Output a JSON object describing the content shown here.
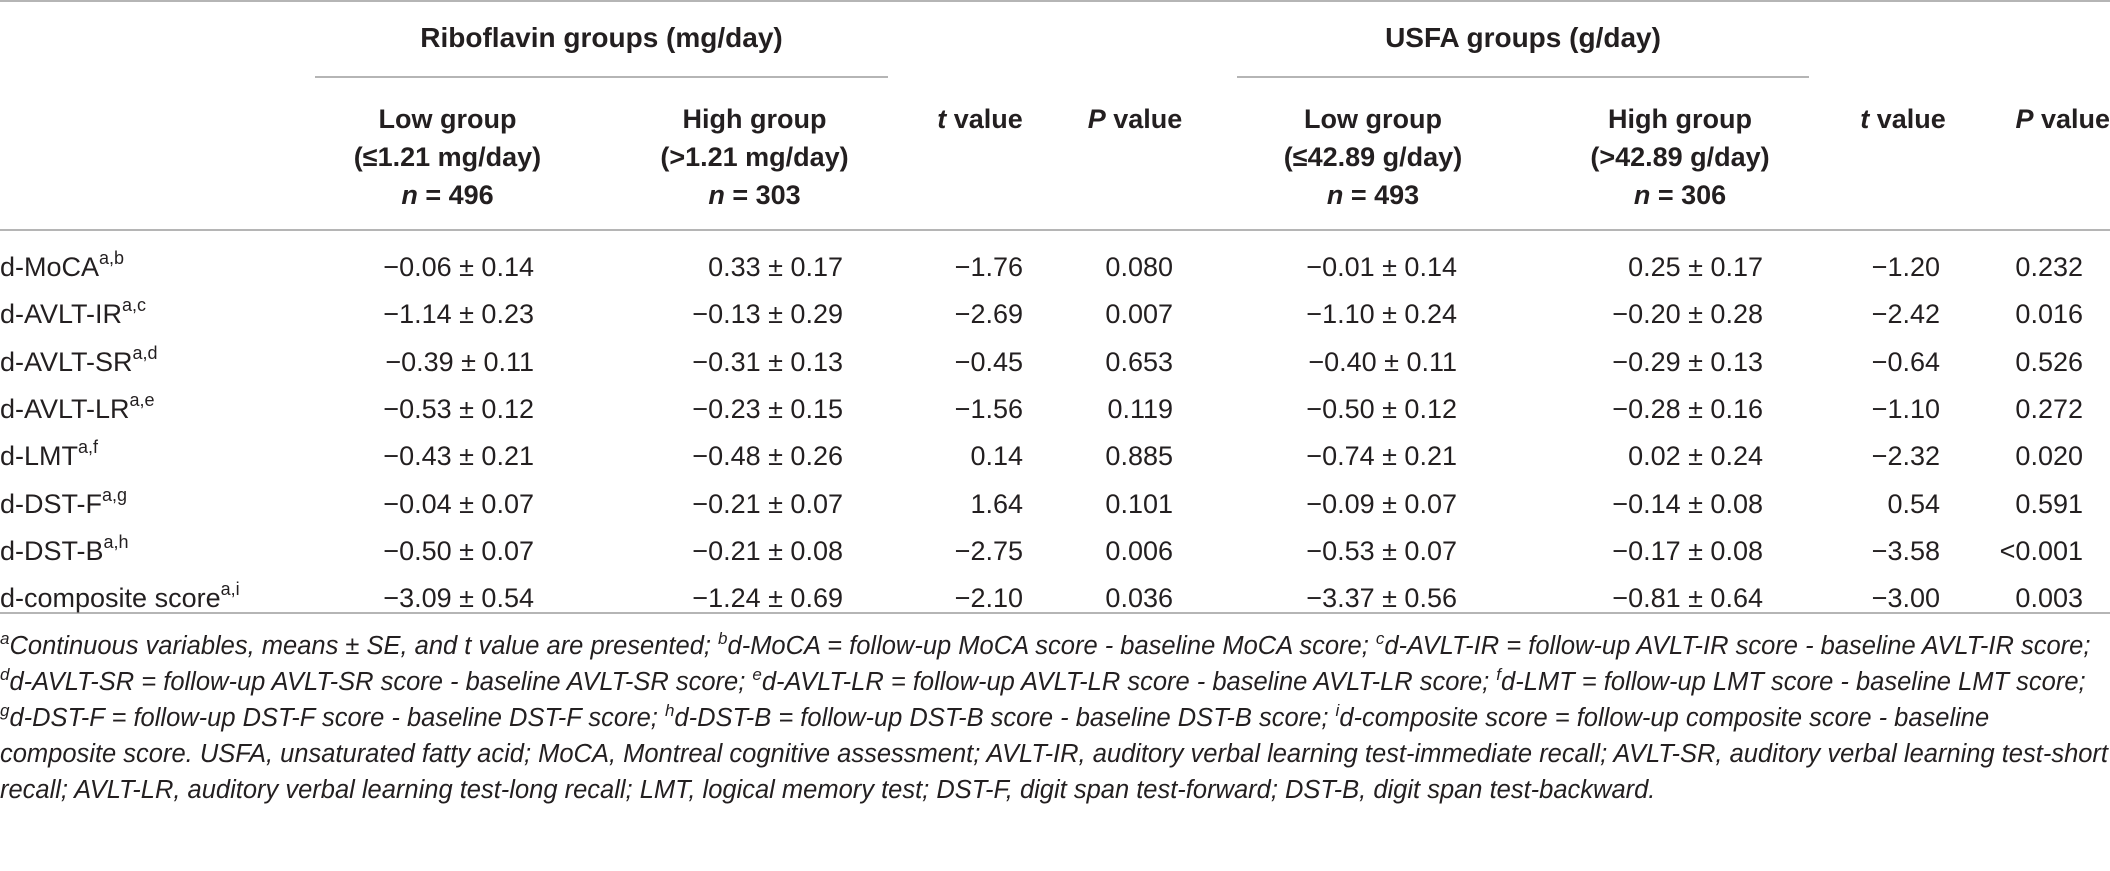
{
  "header": {
    "riboflavin_group": "Riboflavin groups (mg/day)",
    "usfa_group": "USFA groups (g/day)",
    "rib_low": [
      "Low group",
      "(≤1.21 mg/day)",
      "n = 496"
    ],
    "rib_high": [
      "High group",
      "(>1.21 mg/day)",
      "n = 303"
    ],
    "usfa_low": [
      "Low group",
      "(≤42.89 g/day)",
      "n = 493"
    ],
    "usfa_high": [
      "High group",
      "(>42.89 g/day)",
      "n = 306"
    ],
    "t_value_italic": "t",
    "t_value_rest": " value",
    "p_value_italic": "P",
    "p_value_rest": " value"
  },
  "rows": [
    {
      "label": "d-MoCA",
      "sup": "a,b",
      "rib_low": "−0.06 ± 0.14",
      "rib_high": "0.33 ± 0.17",
      "rib_t": "−1.76",
      "rib_p": "0.080",
      "usfa_low": "−0.01 ± 0.14",
      "usfa_high": "0.25 ± 0.17",
      "usfa_t": "−1.20",
      "usfa_p": "0.232"
    },
    {
      "label": "d-AVLT-IR",
      "sup": "a,c",
      "rib_low": "−1.14 ± 0.23",
      "rib_high": "−0.13 ± 0.29",
      "rib_t": "−2.69",
      "rib_p": "0.007",
      "usfa_low": "−1.10 ± 0.24",
      "usfa_high": "−0.20 ± 0.28",
      "usfa_t": "−2.42",
      "usfa_p": "0.016"
    },
    {
      "label": "d-AVLT-SR",
      "sup": "a,d",
      "rib_low": "−0.39 ± 0.11",
      "rib_high": "−0.31 ± 0.13",
      "rib_t": "−0.45",
      "rib_p": "0.653",
      "usfa_low": "−0.40 ± 0.11",
      "usfa_high": "−0.29 ± 0.13",
      "usfa_t": "−0.64",
      "usfa_p": "0.526"
    },
    {
      "label": "d-AVLT-LR",
      "sup": "a,e",
      "rib_low": "−0.53 ± 0.12",
      "rib_high": "−0.23 ± 0.15",
      "rib_t": "−1.56",
      "rib_p": "0.119",
      "usfa_low": "−0.50 ± 0.12",
      "usfa_high": "−0.28 ± 0.16",
      "usfa_t": "−1.10",
      "usfa_p": "0.272"
    },
    {
      "label": "d-LMT",
      "sup": "a,f",
      "rib_low": "−0.43 ± 0.21",
      "rib_high": "−0.48 ± 0.26",
      "rib_t": "0.14",
      "rib_p": "0.885",
      "usfa_low": "−0.74 ± 0.21",
      "usfa_high": "0.02 ± 0.24",
      "usfa_t": "−2.32",
      "usfa_p": "0.020"
    },
    {
      "label": "d-DST-F",
      "sup": "a,g",
      "rib_low": "−0.04 ± 0.07",
      "rib_high": "−0.21 ± 0.07",
      "rib_t": "1.64",
      "rib_p": "0.101",
      "usfa_low": "−0.09 ± 0.07",
      "usfa_high": "−0.14 ± 0.08",
      "usfa_t": "0.54",
      "usfa_p": "0.591"
    },
    {
      "label": "d-DST-B",
      "sup": "a,h",
      "rib_low": "−0.50 ± 0.07",
      "rib_high": "−0.21 ± 0.08",
      "rib_t": "−2.75",
      "rib_p": "0.006",
      "usfa_low": "−0.53 ± 0.07",
      "usfa_high": "−0.17 ± 0.08",
      "usfa_t": "−3.58",
      "usfa_p": "<0.001"
    },
    {
      "label": "d-composite score",
      "sup": "a,i",
      "rib_low": "−3.09 ± 0.54",
      "rib_high": "−1.24 ± 0.69",
      "rib_t": "−2.10",
      "rib_p": "0.036",
      "usfa_low": "−3.37 ± 0.56",
      "usfa_high": "−0.81 ± 0.64",
      "usfa_t": "−3.00",
      "usfa_p": "0.003"
    }
  ],
  "footnotes": [
    {
      "sup": "a",
      "text": "Continuous variables, means ± SE, and t value are presented; "
    },
    {
      "sup": "b",
      "text": "d-MoCA = follow-up MoCA score - baseline MoCA score; "
    },
    {
      "sup": "c",
      "text": "d-AVLT-IR = follow-up AVLT-IR score - baseline AVLT-IR score; "
    },
    {
      "sup": "d",
      "text": "d-AVLT-SR = follow-up AVLT-SR score - baseline AVLT-SR score; "
    },
    {
      "sup": "e",
      "text": "d-AVLT-LR = follow-up AVLT-LR score - baseline AVLT-LR score; "
    },
    {
      "sup": "f",
      "text": "d-LMT = follow-up LMT score - baseline LMT score; "
    },
    {
      "sup": "g",
      "text": "d-DST-F = follow-up DST-F score - baseline DST-F score; "
    },
    {
      "sup": "h",
      "text": "d-DST-B = follow-up DST-B score - baseline DST-B score; "
    },
    {
      "sup": "i",
      "text": "d-composite score = follow-up composite score - baseline composite score. "
    },
    {
      "sup": "",
      "text": "USFA, unsaturated fatty acid; MoCA, Montreal cognitive assessment; AVLT-IR, auditory verbal learning test-immediate recall; AVLT-SR, auditory verbal learning test-short recall; AVLT-LR, auditory verbal learning test-long recall; LMT, logical memory test; DST-F, digit span test-forward; DST-B, digit span test-backward."
    }
  ]
}
